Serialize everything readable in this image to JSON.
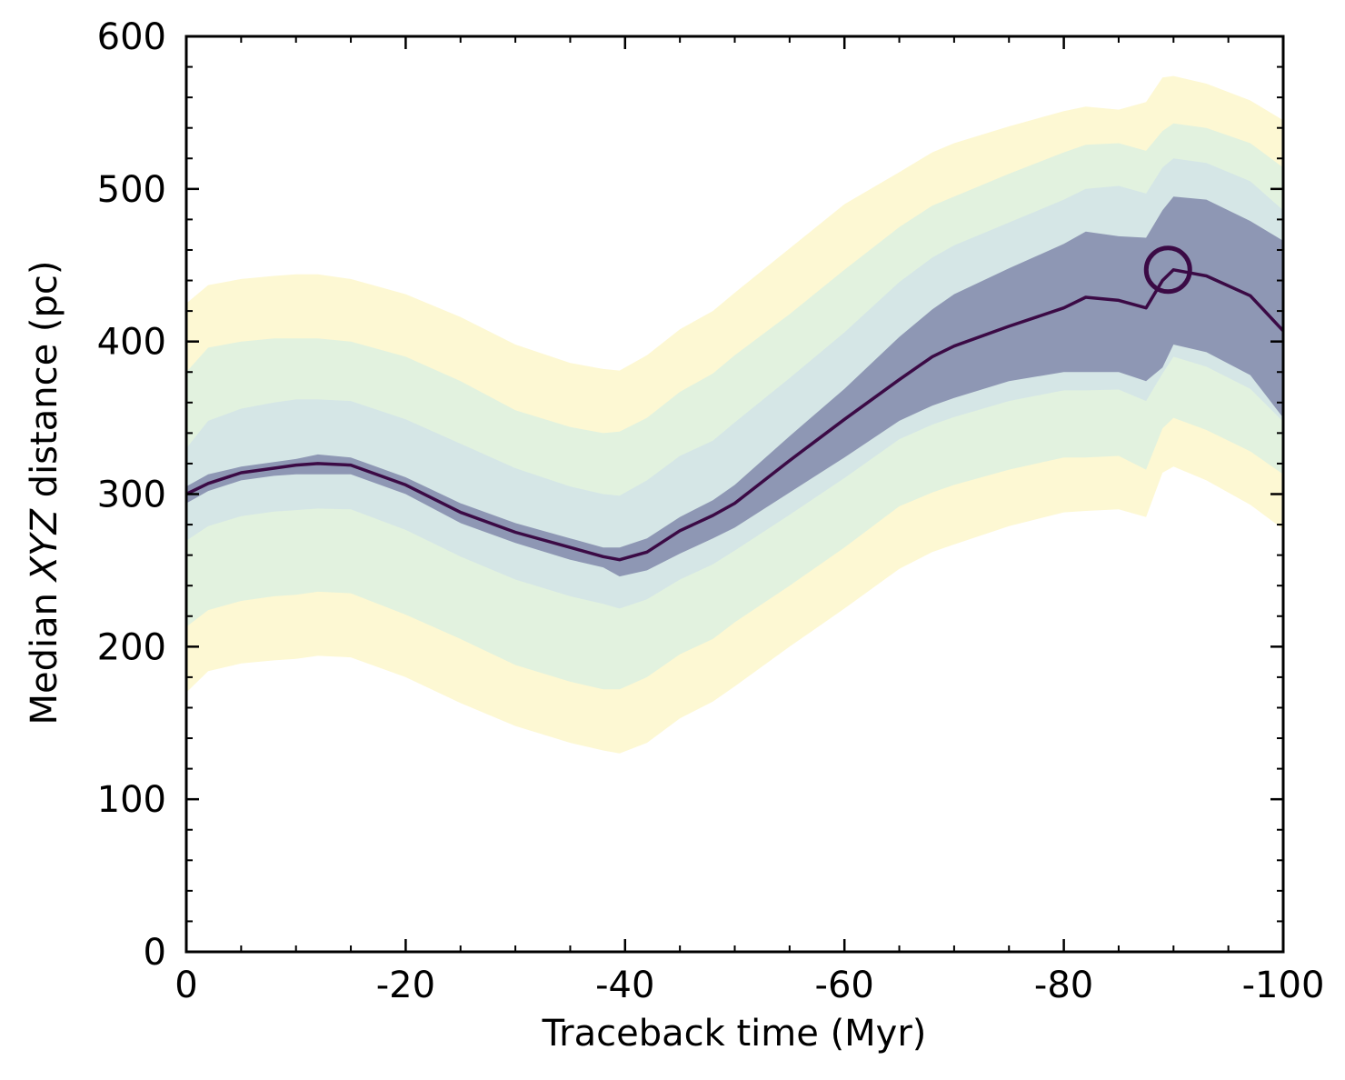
{
  "chart_data": {
    "type": "line",
    "title": "",
    "xlabel": "Traceback time (Myr)",
    "ylabel": {
      "pre": "Median ",
      "italic": "XYZ",
      "post": " distance (pc)"
    },
    "xlim": [
      0,
      -100
    ],
    "ylim": [
      0,
      600
    ],
    "x_ticks": [
      0,
      -20,
      -40,
      -60,
      -80,
      -100
    ],
    "x_tick_labels": [
      "0",
      "-20",
      "-40",
      "-60",
      "-80",
      "-100"
    ],
    "y_ticks": [
      0,
      100,
      200,
      300,
      400,
      500,
      600
    ],
    "y_tick_labels": [
      "0",
      "100",
      "200",
      "300",
      "400",
      "500",
      "600"
    ],
    "grid": false,
    "legend": "none",
    "colors": {
      "line": "#3b0a45",
      "band_1sigma": "#8e97b4",
      "band_2sigma": "#d5e6e6",
      "band_3sigma": "#e2f2df",
      "band_4sigma": "#fdf8d3"
    },
    "x": [
      0,
      -2,
      -5,
      -8,
      -10,
      -12,
      -15,
      -20,
      -25,
      -30,
      -35,
      -38,
      -39.5,
      -42,
      -45,
      -48,
      -50,
      -55,
      -60,
      -65,
      -68,
      -70,
      -75,
      -80,
      -82,
      -85,
      -87.5,
      -89,
      -90,
      -93,
      -97,
      -100
    ],
    "median": [
      300,
      307,
      314,
      317,
      319,
      320,
      319,
      306,
      288,
      275,
      265,
      259,
      257,
      262,
      276,
      286,
      294,
      322,
      349,
      375,
      390,
      397,
      410,
      422,
      429,
      427,
      422,
      440,
      447,
      443,
      430,
      407
    ],
    "bands": [
      {
        "level": 1,
        "upper": [
          305,
          313,
          318,
          321,
          323,
          326,
          324,
          311,
          294,
          281,
          271,
          265,
          265,
          271,
          285,
          296,
          306,
          338,
          369,
          403,
          421,
          431,
          448,
          464,
          472,
          469,
          468,
          486,
          495,
          493,
          479,
          466
        ],
        "lower": [
          294,
          302,
          309,
          312,
          313,
          313,
          313,
          300,
          281,
          268,
          257,
          252,
          246,
          250,
          261,
          271,
          278,
          301,
          324,
          348,
          358,
          363,
          374,
          380,
          380,
          380,
          374,
          383,
          398,
          393,
          378,
          350
        ]
      },
      {
        "level": 2,
        "upper": [
          330,
          348,
          356,
          360,
          362,
          362,
          361,
          349,
          333,
          317,
          305,
          300,
          299,
          309,
          325,
          335,
          347,
          376,
          406,
          439,
          455,
          463,
          478,
          493,
          500,
          502,
          497,
          514,
          520,
          517,
          505,
          486
        ]
      },
      {
        "level": 3,
        "upper": [
          380,
          396,
          400,
          402,
          402,
          402,
          400,
          390,
          374,
          355,
          344,
          340,
          341,
          350,
          367,
          379,
          391,
          418,
          447,
          475,
          489,
          495,
          510,
          524,
          529,
          530,
          525,
          538,
          543,
          540,
          530,
          514
        ],
        "lower": [
          213,
          224,
          230,
          233,
          234,
          236,
          235,
          221,
          205,
          188,
          177,
          172,
          172,
          180,
          195,
          205,
          216,
          240,
          265,
          292,
          301,
          306,
          316,
          324,
          324,
          325,
          316,
          343,
          350,
          342,
          328,
          313
        ]
      },
      {
        "level": 4,
        "upper": [
          425,
          437,
          441,
          443,
          444,
          444,
          441,
          431,
          416,
          398,
          386,
          382,
          381,
          391,
          408,
          420,
          432,
          461,
          490,
          511,
          524,
          530,
          541,
          551,
          554,
          552,
          557,
          573,
          574,
          569,
          558,
          545
        ],
        "lower": [
          170,
          184,
          189,
          191,
          192,
          194,
          193,
          180,
          163,
          148,
          137,
          132,
          130,
          137,
          153,
          164,
          174,
          200,
          225,
          251,
          262,
          267,
          279,
          288,
          289,
          290,
          285,
          314,
          318,
          309,
          293,
          277
        ]
      }
    ],
    "marker": {
      "shape": "open-circle",
      "x": -89.5,
      "y": 447
    }
  }
}
